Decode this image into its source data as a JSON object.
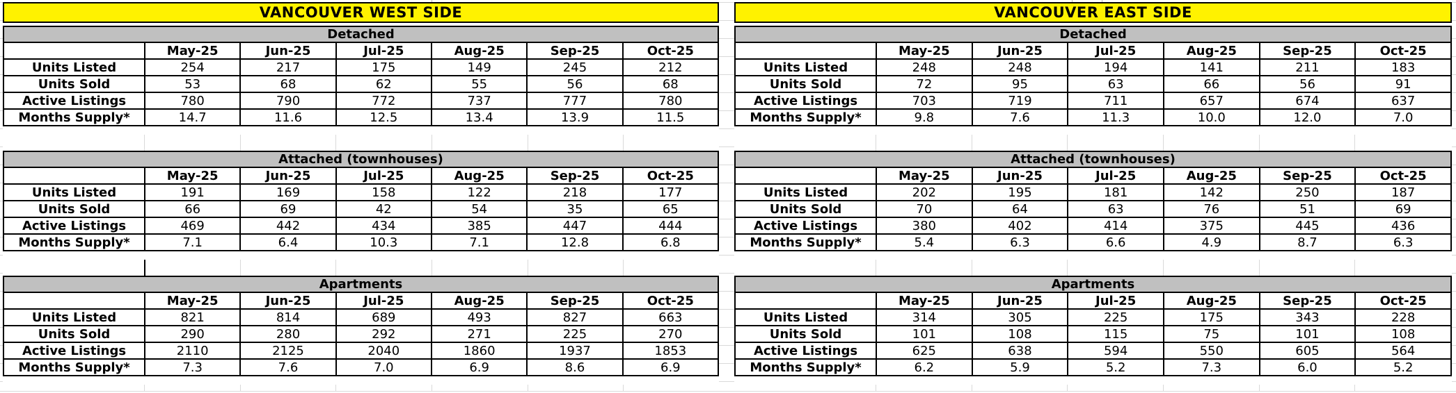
{
  "colors": {
    "title_bg": "#FFF200",
    "band_bg": "#C0C0C0",
    "gridline": "#D9D9D9",
    "border": "#000000"
  },
  "months": [
    "May-25",
    "Jun-25",
    "Jul-25",
    "Aug-25",
    "Sep-25",
    "Oct-25"
  ],
  "row_labels": [
    "Units Listed",
    "Units Sold",
    "Active Listings",
    "Months Supply*"
  ],
  "sides": [
    {
      "title": "VANCOUVER WEST SIDE",
      "sections": [
        {
          "name": "Detached",
          "values": [
            [
              "254",
              "217",
              "175",
              "149",
              "245",
              "212"
            ],
            [
              "53",
              "68",
              "62",
              "55",
              "56",
              "68"
            ],
            [
              "780",
              "790",
              "772",
              "737",
              "777",
              "780"
            ],
            [
              "14.7",
              "11.6",
              "12.5",
              "13.4",
              "13.9",
              "11.5"
            ]
          ]
        },
        {
          "name": "Attached (townhouses)",
          "values": [
            [
              "191",
              "169",
              "158",
              "122",
              "218",
              "177"
            ],
            [
              "66",
              "69",
              "42",
              "54",
              "35",
              "65"
            ],
            [
              "469",
              "442",
              "434",
              "385",
              "447",
              "444"
            ],
            [
              "7.1",
              "6.4",
              "10.3",
              "7.1",
              "12.8",
              "6.8"
            ]
          ]
        },
        {
          "name": "Apartments",
          "values": [
            [
              "821",
              "814",
              "689",
              "493",
              "827",
              "663"
            ],
            [
              "290",
              "280",
              "292",
              "271",
              "225",
              "270"
            ],
            [
              "2110",
              "2125",
              "2040",
              "1860",
              "1937",
              "1853"
            ],
            [
              "7.3",
              "7.6",
              "7.0",
              "6.9",
              "8.6",
              "6.9"
            ]
          ]
        }
      ]
    },
    {
      "title": "VANCOUVER EAST SIDE",
      "sections": [
        {
          "name": "Detached",
          "values": [
            [
              "248",
              "248",
              "194",
              "141",
              "211",
              "183"
            ],
            [
              "72",
              "95",
              "63",
              "66",
              "56",
              "91"
            ],
            [
              "703",
              "719",
              "711",
              "657",
              "674",
              "637"
            ],
            [
              "9.8",
              "7.6",
              "11.3",
              "10.0",
              "12.0",
              "7.0"
            ]
          ]
        },
        {
          "name": "Attached (townhouses)",
          "values": [
            [
              "202",
              "195",
              "181",
              "142",
              "250",
              "187"
            ],
            [
              "70",
              "64",
              "63",
              "76",
              "51",
              "69"
            ],
            [
              "380",
              "402",
              "414",
              "375",
              "445",
              "436"
            ],
            [
              "5.4",
              "6.3",
              "6.6",
              "4.9",
              "8.7",
              "6.3"
            ]
          ]
        },
        {
          "name": "Apartments",
          "values": [
            [
              "314",
              "305",
              "225",
              "175",
              "343",
              "228"
            ],
            [
              "101",
              "108",
              "115",
              "75",
              "101",
              "108"
            ],
            [
              "625",
              "638",
              "594",
              "550",
              "605",
              "564"
            ],
            [
              "6.2",
              "5.9",
              "5.2",
              "7.3",
              "6.0",
              "5.2"
            ]
          ]
        }
      ]
    }
  ]
}
